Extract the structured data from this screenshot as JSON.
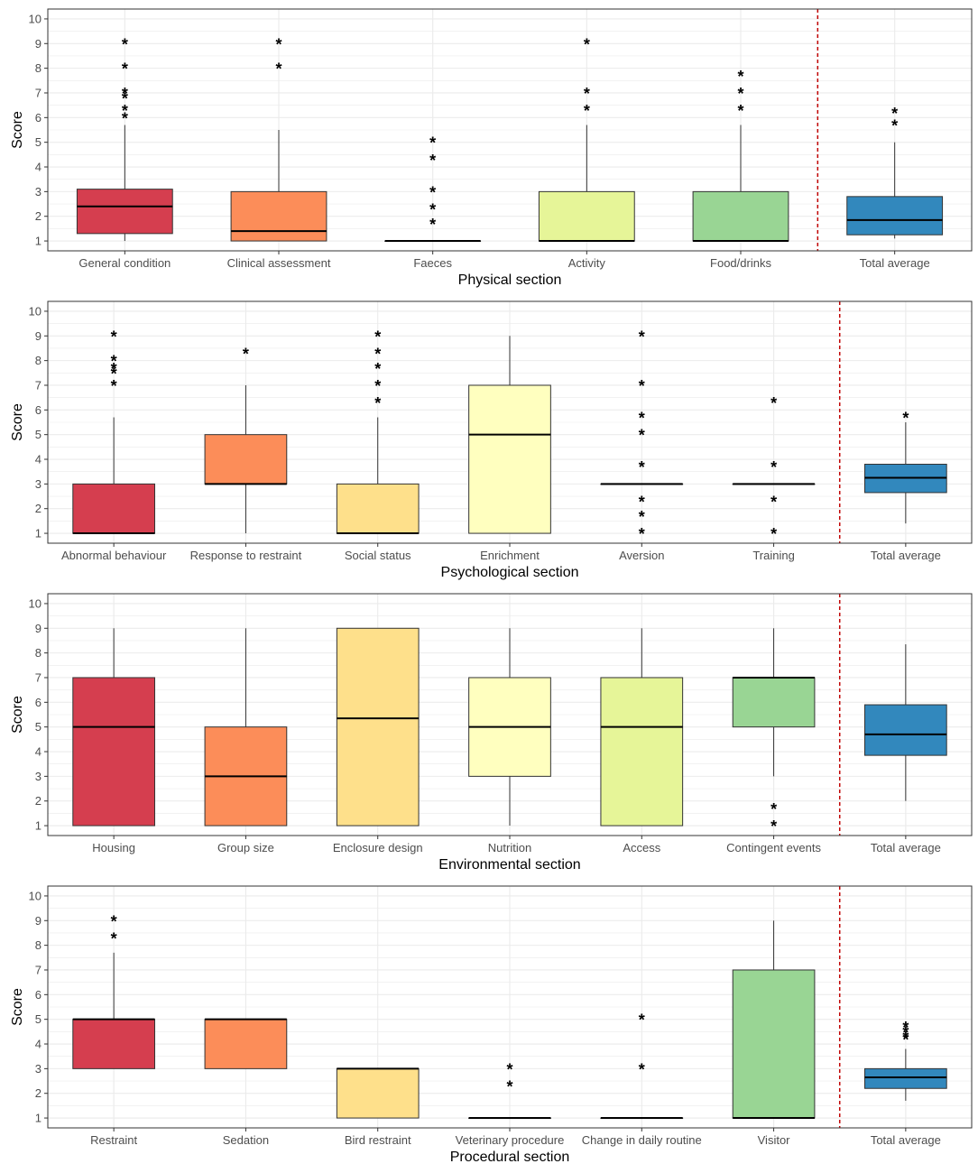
{
  "chart_data": [
    {
      "type": "boxplot",
      "xlabel": "Physical section",
      "ylabel": "Score",
      "ylim": [
        0.6,
        10.4
      ],
      "yticks": [
        1,
        2,
        3,
        4,
        5,
        6,
        7,
        8,
        9,
        10
      ],
      "categories": [
        "General condition",
        "Clinical assessment",
        "Faeces",
        "Activity",
        "Food/drinks",
        "Total average"
      ],
      "colors": [
        "#d53e4f",
        "#fc8d59",
        "#fee08b",
        "#e6f598",
        "#99d594",
        "#3288bd"
      ],
      "boxes": [
        {
          "min": 1,
          "q1": 1.3,
          "median": 2.4,
          "q3": 3.1,
          "max": 5.7,
          "outliers": [
            6,
            6.3,
            6.8,
            7,
            8,
            9
          ]
        },
        {
          "min": 1,
          "q1": 1,
          "median": 1.4,
          "q3": 3,
          "max": 5.5,
          "outliers": [
            8,
            9
          ]
        },
        {
          "min": 1,
          "q1": 1,
          "median": 1,
          "q3": 1,
          "max": 1,
          "outliers": [
            1.7,
            2.3,
            3,
            4.3,
            5
          ]
        },
        {
          "min": 1,
          "q1": 1,
          "median": 1,
          "q3": 3,
          "max": 5.7,
          "outliers": [
            6.3,
            7,
            9
          ]
        },
        {
          "min": 1,
          "q1": 1,
          "median": 1,
          "q3": 3,
          "max": 5.7,
          "outliers": [
            6.3,
            7,
            7.7
          ]
        },
        {
          "min": 1.1,
          "q1": 1.25,
          "median": 1.85,
          "q3": 2.8,
          "max": 5,
          "outliers": [
            5.7,
            6.2
          ]
        }
      ],
      "reference_line_after_category": 5
    },
    {
      "type": "boxplot",
      "xlabel": "Psychological section",
      "ylabel": "Score",
      "ylim": [
        0.6,
        10.4
      ],
      "yticks": [
        1,
        2,
        3,
        4,
        5,
        6,
        7,
        8,
        9,
        10
      ],
      "categories": [
        "Abnormal behaviour",
        "Response to restraint",
        "Social status",
        "Enrichment",
        "Aversion",
        "Training",
        "Total average"
      ],
      "colors": [
        "#d53e4f",
        "#fc8d59",
        "#fee08b",
        "#ffffbf",
        "#e6f598",
        "#99d594",
        "#3288bd"
      ],
      "boxes": [
        {
          "min": 1,
          "q1": 1,
          "median": 1,
          "q3": 3,
          "max": 5.7,
          "outliers": [
            7,
            7.5,
            7.7,
            8,
            9
          ]
        },
        {
          "min": 1,
          "q1": 3,
          "median": 3,
          "q3": 5,
          "max": 7,
          "outliers": [
            8.3
          ]
        },
        {
          "min": 1,
          "q1": 1,
          "median": 1,
          "q3": 3,
          "max": 5.7,
          "outliers": [
            6.3,
            7,
            7.7,
            8.3,
            9
          ]
        },
        {
          "min": 1,
          "q1": 1,
          "median": 5,
          "q3": 7,
          "max": 9,
          "outliers": []
        },
        {
          "min": 3,
          "q1": 3,
          "median": 3,
          "q3": 3,
          "max": 3,
          "outliers": [
            1,
            1.7,
            2.3,
            3.7,
            5,
            5.7,
            7,
            9
          ]
        },
        {
          "min": 3,
          "q1": 3,
          "median": 3,
          "q3": 3,
          "max": 3,
          "outliers": [
            1,
            2.3,
            3.7,
            6.3
          ]
        },
        {
          "min": 1.4,
          "q1": 2.65,
          "median": 3.25,
          "q3": 3.8,
          "max": 5.5,
          "outliers": [
            5.7
          ]
        }
      ],
      "reference_line_after_category": 6
    },
    {
      "type": "boxplot",
      "xlabel": "Environmental section",
      "ylabel": "Score",
      "ylim": [
        0.6,
        10.4
      ],
      "yticks": [
        1,
        2,
        3,
        4,
        5,
        6,
        7,
        8,
        9,
        10
      ],
      "categories": [
        "Housing",
        "Group size",
        "Enclosure design",
        "Nutrition",
        "Access",
        "Contingent events",
        "Total average"
      ],
      "colors": [
        "#d53e4f",
        "#fc8d59",
        "#fee08b",
        "#ffffbf",
        "#e6f598",
        "#99d594",
        "#3288bd"
      ],
      "boxes": [
        {
          "min": 1,
          "q1": 1,
          "median": 5,
          "q3": 7,
          "max": 9,
          "outliers": []
        },
        {
          "min": 1,
          "q1": 1,
          "median": 3,
          "q3": 5,
          "max": 9,
          "outliers": []
        },
        {
          "min": 1,
          "q1": 1,
          "median": 5.35,
          "q3": 9,
          "max": 9,
          "outliers": []
        },
        {
          "min": 1,
          "q1": 3,
          "median": 5,
          "q3": 7,
          "max": 9,
          "outliers": []
        },
        {
          "min": 1,
          "q1": 1,
          "median": 5,
          "q3": 7,
          "max": 9,
          "outliers": []
        },
        {
          "min": 3,
          "q1": 5,
          "median": 7,
          "q3": 7,
          "max": 9,
          "outliers": [
            1,
            1.7
          ]
        },
        {
          "min": 2,
          "q1": 3.85,
          "median": 4.7,
          "q3": 5.9,
          "max": 8.35,
          "outliers": []
        }
      ],
      "reference_line_after_category": 6
    },
    {
      "type": "boxplot",
      "xlabel": "Procedural section",
      "ylabel": "Score",
      "ylim": [
        0.6,
        10.4
      ],
      "yticks": [
        1,
        2,
        3,
        4,
        5,
        6,
        7,
        8,
        9,
        10
      ],
      "categories": [
        "Restraint",
        "Sedation",
        "Bird restraint",
        "Veterinary procedure",
        "Change in daily routine",
        "Visitor",
        "Total average"
      ],
      "colors": [
        "#d53e4f",
        "#fc8d59",
        "#fee08b",
        "#ffffbf",
        "#e6f598",
        "#99d594",
        "#3288bd"
      ],
      "boxes": [
        {
          "min": 3,
          "q1": 3,
          "median": 5,
          "q3": 5,
          "max": 7.7,
          "outliers": [
            8.3,
            9
          ]
        },
        {
          "min": 3,
          "q1": 3,
          "median": 5,
          "q3": 5,
          "max": 5,
          "outliers": []
        },
        {
          "min": 1,
          "q1": 1,
          "median": 3,
          "q3": 3,
          "max": 3,
          "outliers": []
        },
        {
          "min": 1,
          "q1": 1,
          "median": 1,
          "q3": 1,
          "max": 1,
          "outliers": [
            2.3,
            3
          ]
        },
        {
          "min": 1,
          "q1": 1,
          "median": 1,
          "q3": 1,
          "max": 1,
          "outliers": [
            3,
            5
          ]
        },
        {
          "min": 1,
          "q1": 1,
          "median": 1,
          "q3": 7,
          "max": 9,
          "outliers": []
        },
        {
          "min": 1.7,
          "q1": 2.2,
          "median": 2.65,
          "q3": 3,
          "max": 3.8,
          "outliers": [
            4.2,
            4.3,
            4.5,
            4.7
          ]
        }
      ],
      "reference_line_after_category": 6
    }
  ],
  "colors": {
    "reference_line": "#c00000",
    "panel_border": "#333333",
    "grid": "#ebebeb",
    "outlier_marker": "#000000"
  }
}
